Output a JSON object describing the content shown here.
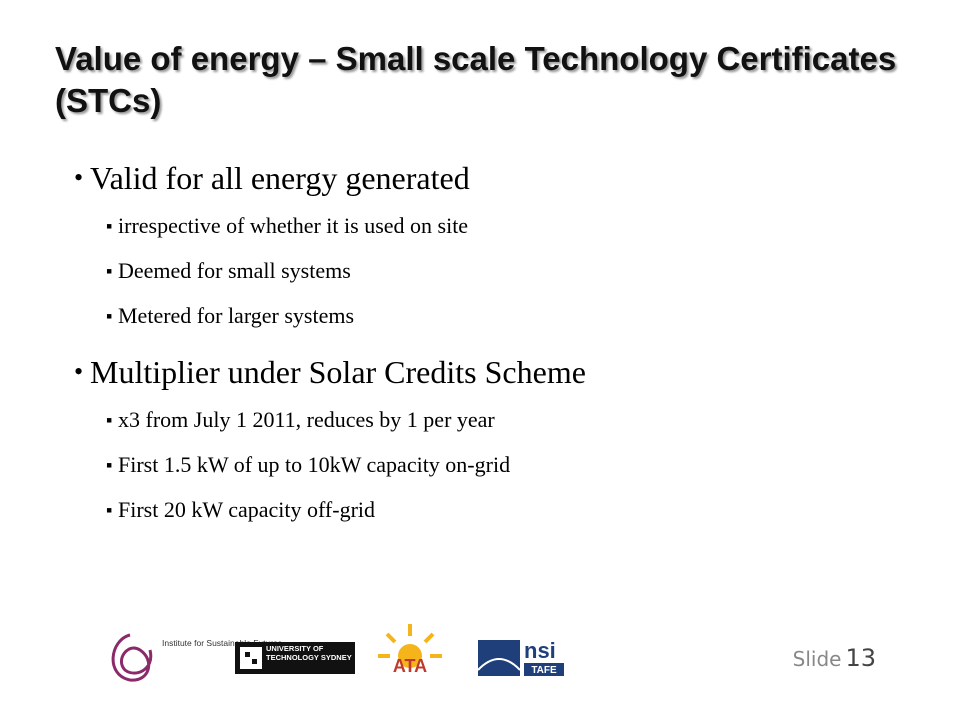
{
  "title": "Value of energy – Small scale Technology Certificates (STCs)",
  "bullets": [
    {
      "text": "Valid for all energy generated",
      "subs": [
        "irrespective of whether it is used on site",
        "Deemed for small systems",
        "Metered for larger systems"
      ]
    },
    {
      "text": "Multiplier under Solar Credits Scheme",
      "subs": [
        "x3 from July 1 2011, reduces by 1 per year",
        "First 1.5 kW of up to 10kW capacity on-grid",
        "First 20 kW capacity off-grid"
      ]
    }
  ],
  "logos": {
    "isf": "Institute for Sustainable Futures",
    "uts": "UNIVERSITY OF TECHNOLOGY SYDNEY",
    "ata": "ATA",
    "nsi": "nsi",
    "tafe": "TAFE"
  },
  "slide_label": "Slide",
  "slide_number": 13
}
